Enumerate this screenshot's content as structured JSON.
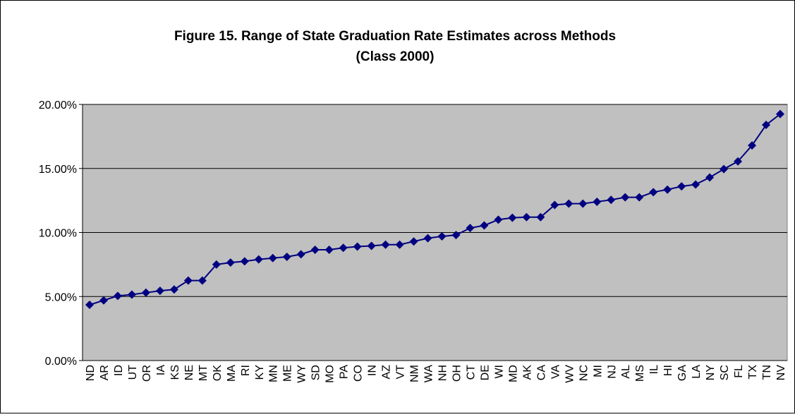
{
  "chart_data": {
    "type": "line",
    "title": "Figure 15. Range of State Graduation Rate Estimates across Methods",
    "subtitle": "(Class 2000)",
    "categories": [
      "ND",
      "AR",
      "ID",
      "UT",
      "OR",
      "IA",
      "KS",
      "NE",
      "MT",
      "OK",
      "MA",
      "RI",
      "KY",
      "MN",
      "ME",
      "WY",
      "SD",
      "MO",
      "PA",
      "CO",
      "IN",
      "AZ",
      "VT",
      "NM",
      "WA",
      "NH",
      "OH",
      "CT",
      "DE",
      "WI",
      "MD",
      "AK",
      "CA",
      "VA",
      "WV",
      "NC",
      "MI",
      "NJ",
      "AL",
      "MS",
      "IL",
      "HI",
      "GA",
      "LA",
      "NY",
      "SC",
      "FL",
      "TX",
      "TN",
      "NV"
    ],
    "values": [
      4.35,
      4.7,
      5.05,
      5.15,
      5.3,
      5.45,
      5.55,
      6.25,
      6.25,
      7.5,
      7.65,
      7.75,
      7.9,
      8.0,
      8.1,
      8.3,
      8.65,
      8.65,
      8.8,
      8.9,
      8.95,
      9.05,
      9.05,
      9.3,
      9.55,
      9.7,
      9.8,
      10.35,
      10.55,
      11.0,
      11.15,
      11.2,
      11.2,
      12.15,
      12.25,
      12.25,
      12.4,
      12.55,
      12.75,
      12.75,
      13.15,
      13.35,
      13.6,
      13.75,
      14.3,
      14.95,
      15.55,
      16.8,
      18.4,
      19.25
    ],
    "color": "#000080",
    "ylim": [
      0,
      20
    ],
    "yticks": [
      {
        "value": 0,
        "label": "0.00%"
      },
      {
        "value": 5,
        "label": "5.00%"
      },
      {
        "value": 10,
        "label": "10.00%"
      },
      {
        "value": 15,
        "label": "15.00%"
      },
      {
        "value": 20,
        "label": "20.00%"
      }
    ],
    "grid": true
  }
}
